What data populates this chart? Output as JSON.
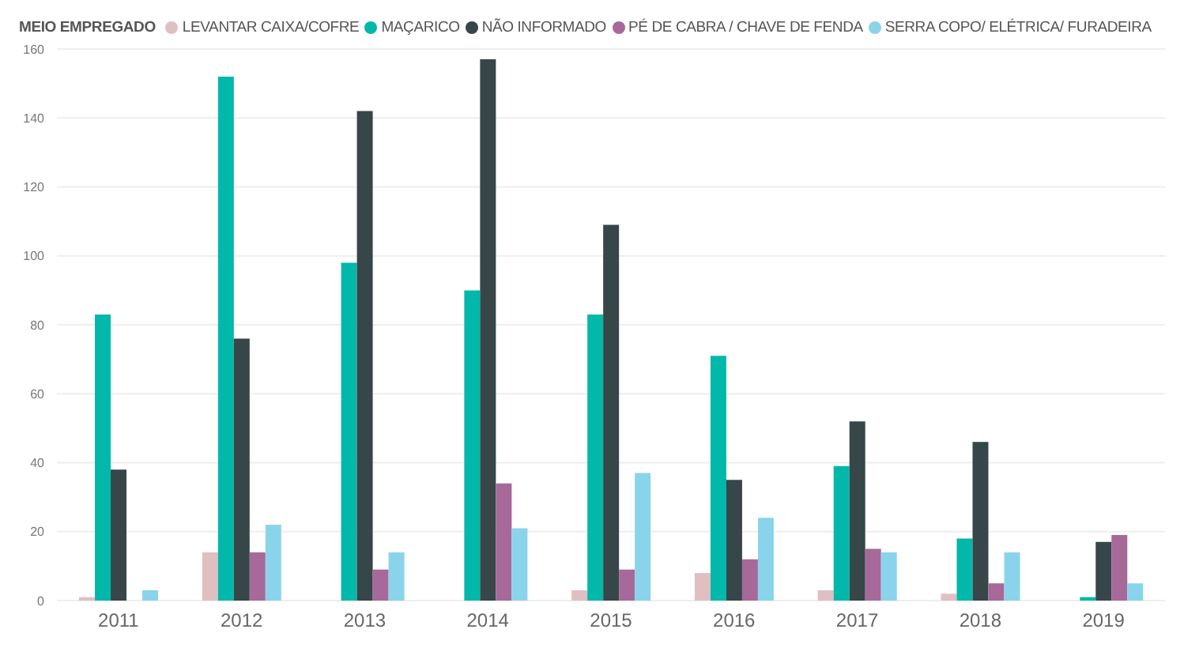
{
  "chart_data": {
    "type": "bar",
    "legend_title": "MEIO EMPREGADO",
    "legend": "top left",
    "grid": "y",
    "categories": [
      "2011",
      "2012",
      "2013",
      "2014",
      "2015",
      "2016",
      "2017",
      "2018",
      "2019"
    ],
    "ylim": [
      0,
      160
    ],
    "yticks": [
      0,
      20,
      40,
      60,
      80,
      100,
      120,
      140,
      160
    ],
    "series": [
      {
        "name": "LEVANTAR CAIXA/COFRE",
        "color": "#e0bfc2",
        "values": [
          1,
          14,
          null,
          null,
          3,
          8,
          3,
          2,
          null
        ]
      },
      {
        "name": "MAÇARICO",
        "color": "#01b8aa",
        "values": [
          83,
          152,
          98,
          90,
          83,
          71,
          39,
          18,
          1
        ]
      },
      {
        "name": "NÃO INFORMADO",
        "color": "#374649",
        "values": [
          38,
          76,
          142,
          157,
          109,
          35,
          52,
          46,
          17
        ]
      },
      {
        "name": "PÉ DE CABRA / CHAVE DE FENDA",
        "color": "#a66999",
        "values": [
          null,
          14,
          9,
          34,
          9,
          12,
          15,
          5,
          19
        ]
      },
      {
        "name": "SERRA COPO/ ELÉTRICA/ FURADEIRA",
        "color": "#8ad4eb",
        "values": [
          3,
          22,
          14,
          21,
          37,
          24,
          14,
          14,
          5
        ]
      }
    ]
  }
}
